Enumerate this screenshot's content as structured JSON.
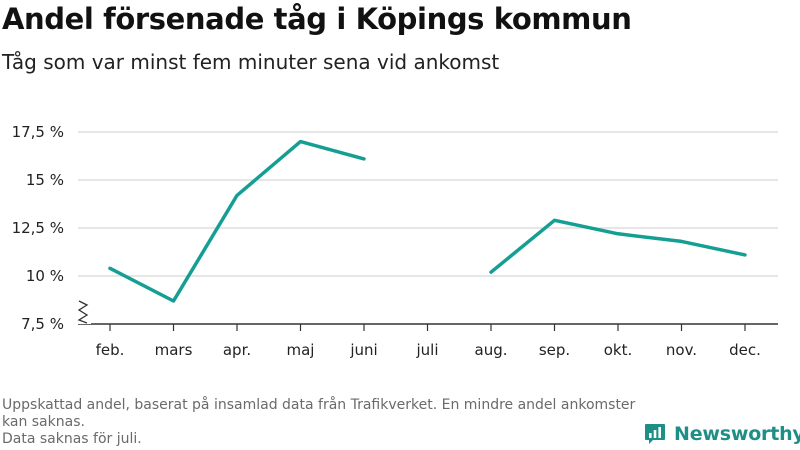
{
  "title": "Andel försenade tåg i Köpings kommun",
  "subtitle": "Tåg som var minst fem minuter sena vid ankomst",
  "footnote": {
    "line1": "Uppskattad andel, baserat på insamlad data från Trafikverket. En mindre andel ankomster kan saknas.",
    "line2": "Data saknas för juli."
  },
  "brand": {
    "name": "Newsworthy",
    "icon": "newsworthy-logo-icon"
  },
  "colors": {
    "line": "#159f94",
    "grid": "#dddddd",
    "axis": "#333333",
    "brand": "#1e8f86"
  },
  "chart_data": {
    "type": "line",
    "title": "Andel försenade tåg i Köpings kommun",
    "subtitle": "Tåg som var minst fem minuter sena vid ankomst",
    "categories": [
      "feb.",
      "mars",
      "apr.",
      "maj",
      "juni",
      "juli",
      "aug.",
      "sep.",
      "okt.",
      "nov.",
      "dec."
    ],
    "values": [
      10.4,
      8.7,
      14.2,
      17.0,
      16.1,
      null,
      10.2,
      12.9,
      12.2,
      11.8,
      11.1
    ],
    "unit": "%",
    "ylim": [
      7.5,
      17.5
    ],
    "yticks": [
      7.5,
      10,
      12.5,
      15,
      17.5
    ],
    "ytick_labels": [
      "7,5 %",
      "10 %",
      "12,5 %",
      "15 %",
      "17,5 %"
    ],
    "axis_break": true,
    "grid": true
  }
}
